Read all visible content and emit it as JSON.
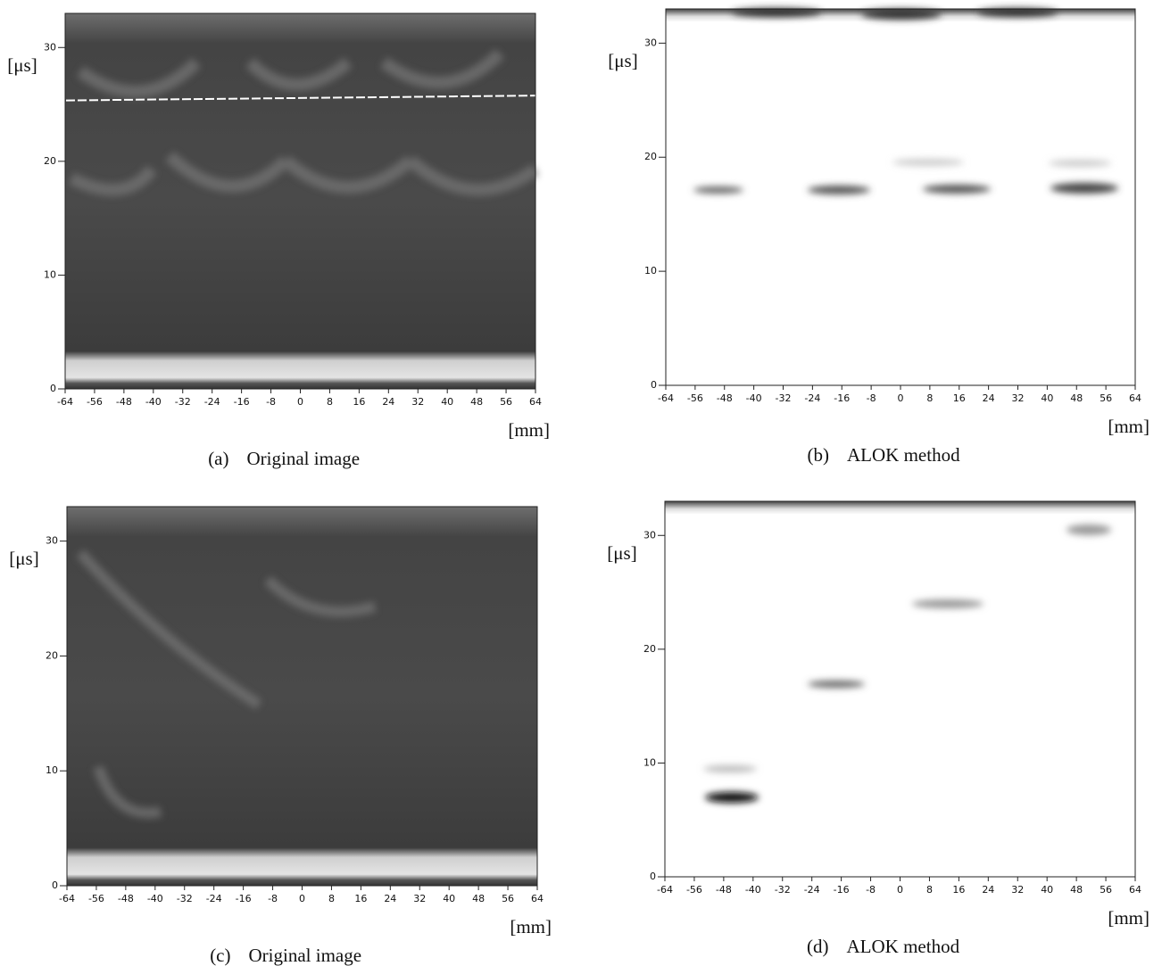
{
  "chart_data": [
    {
      "type": "image",
      "label": "(a)",
      "title": "Original image",
      "xlabel": "[mm]",
      "ylabel": "[μs]",
      "xlim": [
        -64,
        64
      ],
      "ylim": [
        0,
        33
      ],
      "xticks": [
        -64,
        -56,
        -48,
        -40,
        -32,
        -24,
        -16,
        -8,
        0,
        8,
        16,
        24,
        32,
        40,
        48,
        56,
        64
      ],
      "yticks": [
        0,
        10,
        20,
        30
      ]
    },
    {
      "type": "image",
      "label": "(b)",
      "title": "ALOK method",
      "xlabel": "[mm]",
      "ylabel": "[μs]",
      "xlim": [
        -64,
        64
      ],
      "ylim": [
        0,
        33
      ],
      "xticks": [
        -64,
        -56,
        -48,
        -40,
        -32,
        -24,
        -16,
        -8,
        0,
        8,
        16,
        24,
        32,
        40,
        48,
        56,
        64
      ],
      "yticks": [
        0,
        10,
        20,
        30
      ]
    },
    {
      "type": "image",
      "label": "(c)",
      "title": "Original image",
      "xlabel": "[mm]",
      "ylabel": "[μs]",
      "xlim": [
        -64,
        64
      ],
      "ylim": [
        0,
        33
      ],
      "xticks": [
        -64,
        -56,
        -48,
        -40,
        -32,
        -24,
        -16,
        -8,
        0,
        8,
        16,
        24,
        32,
        40,
        48,
        56,
        64
      ],
      "yticks": [
        0,
        10,
        20,
        30
      ]
    },
    {
      "type": "image",
      "label": "(d)",
      "title": "ALOK method",
      "xlabel": "[mm]",
      "ylabel": "[μs]",
      "xlim": [
        -64,
        64
      ],
      "ylim": [
        0,
        33
      ],
      "xticks": [
        -64,
        -56,
        -48,
        -40,
        -32,
        -24,
        -16,
        -8,
        0,
        8,
        16,
        24,
        32,
        40,
        48,
        56,
        64
      ],
      "yticks": [
        0,
        10,
        20,
        30
      ]
    }
  ]
}
